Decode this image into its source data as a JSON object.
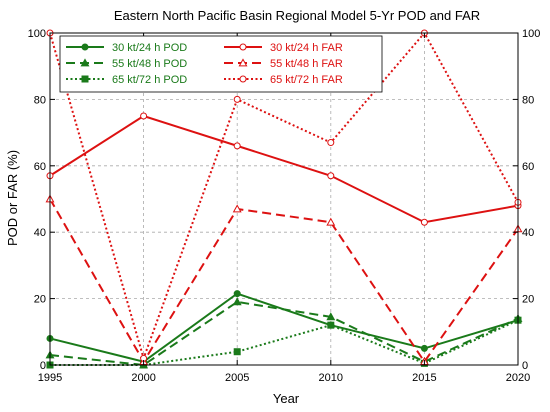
{
  "chart_data": {
    "type": "line",
    "title": "Eastern North Pacific Basin Regional Model 5-Yr POD and FAR",
    "xlabel": "Year",
    "ylabel": "POD or FAR (%)",
    "x": [
      1995,
      2000,
      2005,
      2010,
      2015,
      2020
    ],
    "xlim": [
      1995,
      2020
    ],
    "ylim": [
      0,
      100
    ],
    "xticks": [
      "1995",
      "2000",
      "2005",
      "2010",
      "2015",
      "2020"
    ],
    "yticks": [
      "0",
      "20",
      "40",
      "60",
      "80",
      "100"
    ],
    "right_axis": true,
    "grid": true,
    "legend_placement": "top",
    "series": [
      {
        "name": "30 kt/24 h POD",
        "values": [
          8,
          1,
          21.5,
          12,
          5,
          13.5
        ],
        "color": "#1a7a1a",
        "style": "solid",
        "marker": "circle-filled"
      },
      {
        "name": "55 kt/48 h POD",
        "values": [
          3,
          0,
          19,
          14.5,
          1,
          14
        ],
        "color": "#1a7a1a",
        "style": "dashed",
        "marker": "triangle-filled"
      },
      {
        "name": "65 kt/72 h POD",
        "values": [
          0,
          0,
          4,
          12,
          0.5,
          13.5
        ],
        "color": "#1a7a1a",
        "style": "dotted",
        "marker": "square-filled"
      },
      {
        "name": "30 kt/24 h FAR",
        "values": [
          57,
          75,
          66,
          57,
          43,
          48
        ],
        "color": "#dd1111",
        "style": "solid",
        "marker": "circle-open"
      },
      {
        "name": "55 kt/48 h FAR",
        "values": [
          50,
          1,
          47,
          43,
          1,
          41
        ],
        "color": "#dd1111",
        "style": "dashed",
        "marker": "triangle-open"
      },
      {
        "name": "65 kt/72 h FAR",
        "values": [
          100,
          2,
          80,
          67,
          100,
          49
        ],
        "color": "#dd1111",
        "style": "dotted",
        "marker": "circle-open"
      }
    ]
  }
}
